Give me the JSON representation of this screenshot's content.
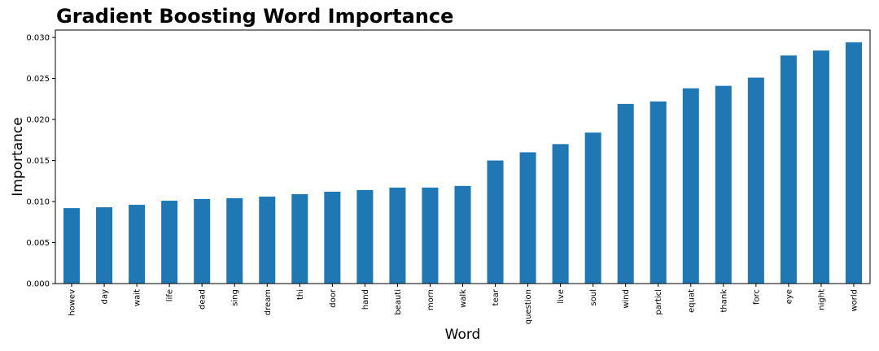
{
  "chart_data": {
    "type": "bar",
    "title": "Gradient Boosting Word Importance",
    "xlabel": "Word",
    "ylabel": "Importance",
    "categories": [
      "howev",
      "day",
      "wait",
      "life",
      "dead",
      "sing",
      "dream",
      "thi",
      "door",
      "hand",
      "beauti",
      "morn",
      "walk",
      "tear",
      "question",
      "live",
      "soul",
      "wind",
      "particl",
      "equat",
      "thank",
      "forc",
      "eye",
      "night",
      "world"
    ],
    "values": [
      0.0092,
      0.0093,
      0.0096,
      0.0101,
      0.0103,
      0.0104,
      0.0106,
      0.0109,
      0.0112,
      0.0114,
      0.0117,
      0.0117,
      0.0119,
      0.015,
      0.016,
      0.017,
      0.0184,
      0.0219,
      0.0222,
      0.0238,
      0.0241,
      0.0251,
      0.0278,
      0.0284,
      0.0294
    ],
    "yticks": [
      "0.000",
      "0.005",
      "0.010",
      "0.015",
      "0.020",
      "0.025",
      "0.030"
    ],
    "ylim": [
      0,
      0.0309
    ],
    "grid": false,
    "legend": "none",
    "bar_color": "#1f77b4"
  }
}
